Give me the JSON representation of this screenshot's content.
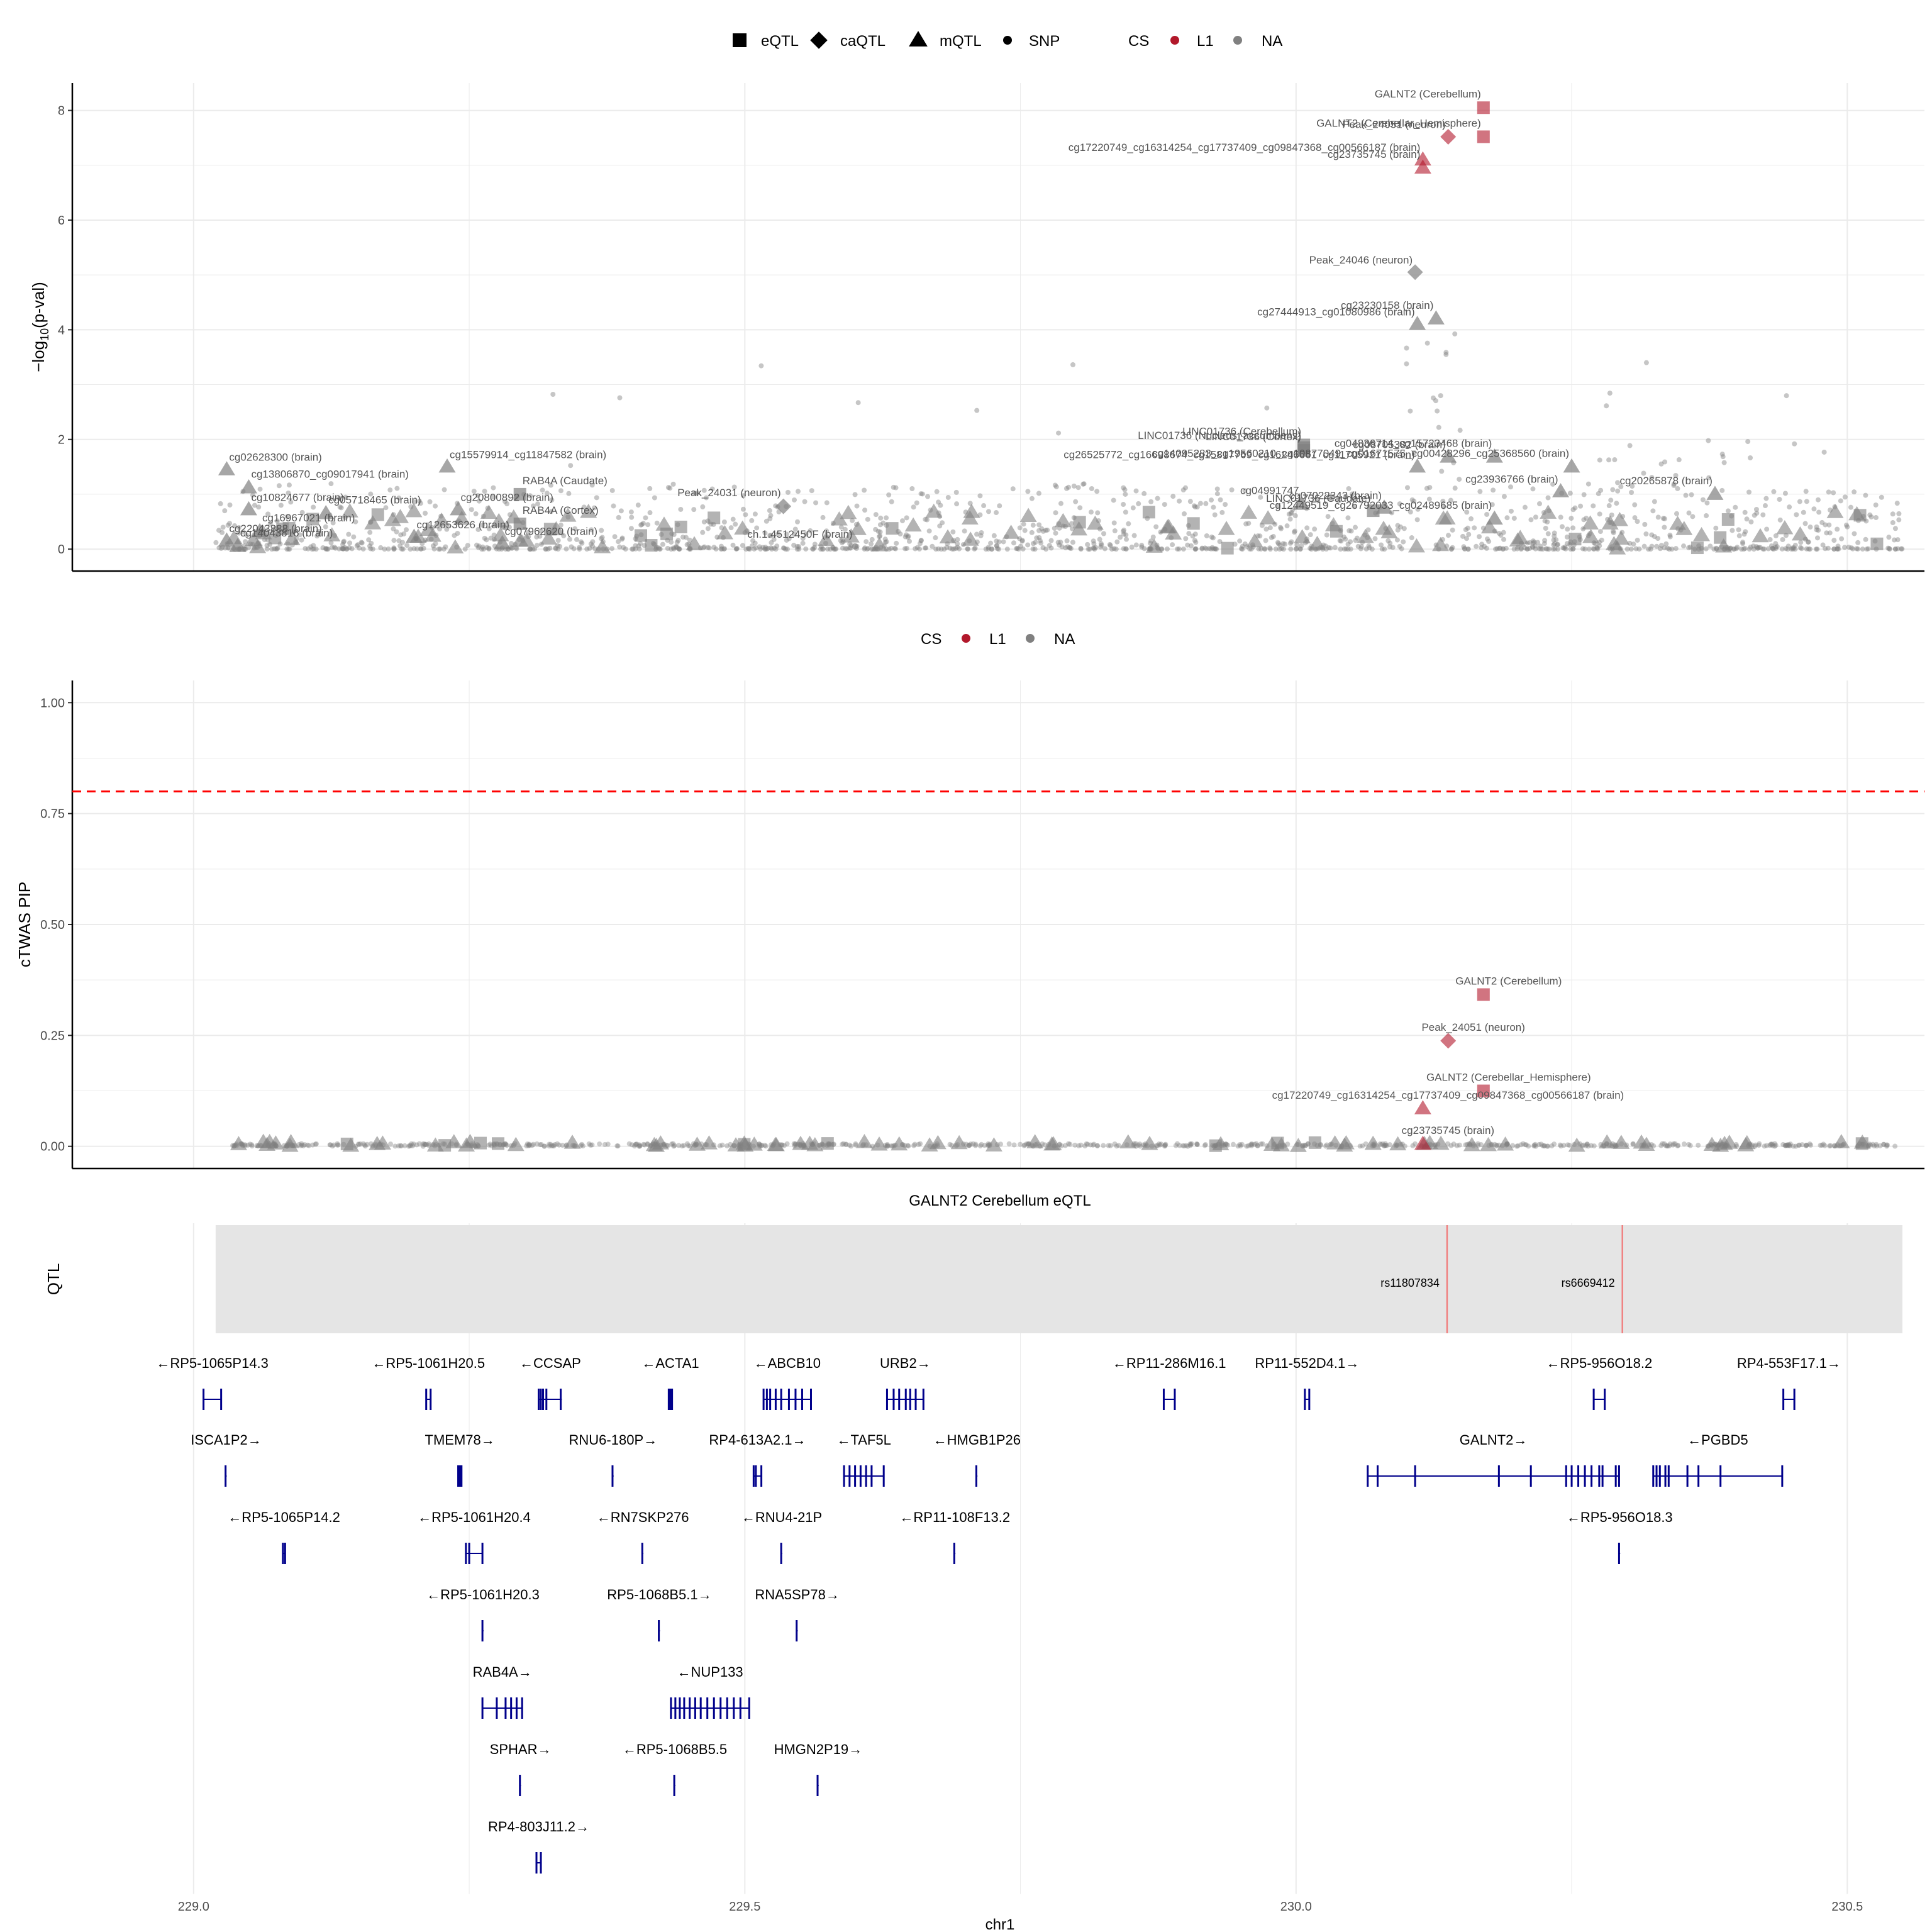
{
  "colors": {
    "cs_l1": "#B2182B",
    "cs_na": "#808080",
    "gene": "#00008B",
    "threshold": "#FF0000",
    "qtl_band": "#E5E5E5",
    "qtl_line": "#F08080",
    "grid": "#EBEBEB"
  },
  "legend_top": {
    "shape_items": [
      {
        "shape": "square",
        "label": "eQTL"
      },
      {
        "shape": "diamond",
        "label": "caQTL"
      },
      {
        "shape": "triangle",
        "label": "mQTL"
      },
      {
        "shape": "dot",
        "label": "SNP"
      }
    ],
    "cs_title": "CS",
    "cs_items": [
      {
        "label": "L1",
        "color": "#B2182B"
      },
      {
        "label": "NA",
        "color": "#808080"
      }
    ]
  },
  "legend_mid": {
    "cs_title": "CS",
    "cs_items": [
      {
        "label": "L1",
        "color": "#B2182B"
      },
      {
        "label": "NA",
        "color": "#808080"
      }
    ]
  },
  "chart_data": [
    {
      "type": "scatter",
      "title": "",
      "xlabel": "",
      "ylabel": "−log10(p-val)",
      "xlim": [
        228.89,
        230.57
      ],
      "ylim": [
        -0.4,
        8.5
      ],
      "yticks": [
        0,
        2,
        4,
        6,
        8
      ],
      "labeled_points": [
        {
          "x": 230.17,
          "y": 8.05,
          "shape": "square",
          "cs": "L1",
          "label": "GALNT2 (Cerebellum)"
        },
        {
          "x": 230.138,
          "y": 7.52,
          "shape": "diamond",
          "cs": "L1",
          "label": "Peak_24051 (neuron)"
        },
        {
          "x": 230.17,
          "y": 7.52,
          "shape": "square",
          "cs": "L1",
          "label": "GALNT2 (Cerebellar_Hemisphere)"
        },
        {
          "x": 230.115,
          "y": 7.1,
          "shape": "triangle",
          "cs": "L1",
          "label": "cg17220749_cg16314254_cg17737409_cg09847368_cg00566187 (brain)"
        },
        {
          "x": 230.115,
          "y": 6.95,
          "shape": "triangle",
          "cs": "L1",
          "label": "cg23735745 (brain)"
        },
        {
          "x": 230.108,
          "y": 5.05,
          "shape": "diamond",
          "cs": "NA",
          "label": "Peak_24046 (neuron)"
        },
        {
          "x": 230.127,
          "y": 4.2,
          "shape": "triangle",
          "cs": "NA",
          "label": "cg23230158 (brain)"
        },
        {
          "x": 230.11,
          "y": 4.1,
          "shape": "triangle",
          "cs": "NA",
          "label": "cg27444913_cg01080986 (brain)"
        },
        {
          "x": 230.007,
          "y": 1.9,
          "shape": "square",
          "cs": "NA",
          "label": "LINC01736 (Cerebellum)"
        },
        {
          "x": 230.007,
          "y": 1.85,
          "shape": "square",
          "cs": "NA",
          "label": "LINC01736 (Nucleus_accumbens)"
        },
        {
          "x": 230.007,
          "y": 1.8,
          "shape": "square",
          "cs": "NA",
          "label": "LINC01736 (Cortex)"
        },
        {
          "x": 230.138,
          "y": 1.68,
          "shape": "triangle",
          "cs": "NA",
          "label": "cg08705382 (brain)"
        },
        {
          "x": 230.18,
          "y": 1.68,
          "shape": "triangle",
          "cs": "NA",
          "label": "cg04836714_cg15723468 (brain)"
        },
        {
          "x": 230.11,
          "y": 1.5,
          "shape": "triangle",
          "cs": "NA",
          "label": "cg26525772_cg16698674_cg15817769_cg16246661_cg11705921 (brain)"
        },
        {
          "x": 230.25,
          "y": 1.5,
          "shape": "triangle",
          "cs": "NA",
          "label": "cg14095283_cg19560210_cg10877049_cg01671575_cg00428296_cg25368560 (brain)"
        },
        {
          "x": 230.08,
          "y": 0.75,
          "shape": "triangle",
          "cs": "NA",
          "label": "cg07022343 (brain)"
        },
        {
          "x": 230.005,
          "y": 0.82,
          "shape": "triangle",
          "cs": "NA",
          "label": "cg04991747"
        },
        {
          "x": 230.24,
          "y": 1.05,
          "shape": "triangle",
          "cs": "NA",
          "label": "cg23936766 (brain)"
        },
        {
          "x": 230.38,
          "y": 1.0,
          "shape": "triangle",
          "cs": "NA",
          "label": "cg20265878 (brain)"
        },
        {
          "x": 230.07,
          "y": 0.7,
          "shape": "square",
          "cs": "NA",
          "label": "LINC01736 (Caudate)"
        },
        {
          "x": 230.18,
          "y": 0.55,
          "shape": "triangle",
          "cs": "NA",
          "label": "cg12449519_cg26792033_cg02489685 (brain)"
        },
        {
          "x": 229.03,
          "y": 1.45,
          "shape": "triangle",
          "cs": "NA",
          "label": "cg02628300 (brain)"
        },
        {
          "x": 229.05,
          "y": 1.12,
          "shape": "triangle",
          "cs": "NA",
          "label": "cg13806870_cg09017941 (brain)"
        },
        {
          "x": 229.05,
          "y": 0.72,
          "shape": "triangle",
          "cs": "NA",
          "label": "cg10824677 (brain)"
        },
        {
          "x": 229.12,
          "y": 0.65,
          "shape": "triangle",
          "cs": "NA",
          "label": "cg05718465 (brain)"
        },
        {
          "x": 229.23,
          "y": 1.5,
          "shape": "triangle",
          "cs": "NA",
          "label": "cg15579914_cg11847582 (brain)"
        },
        {
          "x": 229.296,
          "y": 1.0,
          "shape": "square",
          "cs": "NA",
          "label": "RAB4A (Caudate)"
        },
        {
          "x": 229.24,
          "y": 0.72,
          "shape": "triangle",
          "cs": "NA",
          "label": "cg20800892 (brain)"
        },
        {
          "x": 229.06,
          "y": 0.32,
          "shape": "triangle",
          "cs": "NA",
          "label": "cg16967021 (brain)"
        },
        {
          "x": 229.2,
          "y": 0.22,
          "shape": "triangle",
          "cs": "NA",
          "label": "cg12653626 (brain)"
        },
        {
          "x": 229.296,
          "y": 0.46,
          "shape": "square",
          "cs": "NA",
          "label": "RAB4A (Cortex)"
        },
        {
          "x": 229.03,
          "y": 0.15,
          "shape": "triangle",
          "cs": "NA",
          "label": "cg22043888 (brain)"
        },
        {
          "x": 229.04,
          "y": 0.05,
          "shape": "triangle",
          "cs": "NA",
          "label": "cg14043816 (brain)"
        },
        {
          "x": 229.28,
          "y": 0.1,
          "shape": "triangle",
          "cs": "NA",
          "label": "cg07962620 (brain)"
        },
        {
          "x": 229.535,
          "y": 0.78,
          "shape": "diamond",
          "cs": "NA",
          "label": "Peak_24031 (neuron)"
        },
        {
          "x": 229.6,
          "y": 0.05,
          "shape": "dot",
          "cs": "NA",
          "label": "ch.1.4512450F (brain)"
        }
      ]
    },
    {
      "type": "scatter",
      "title": "",
      "xlabel": "",
      "ylabel": "cTWAS PIP",
      "xlim": [
        228.89,
        230.57
      ],
      "ylim": [
        -0.05,
        1.05
      ],
      "yticks": [
        0.0,
        0.25,
        0.5,
        0.75,
        1.0
      ],
      "ytick_labels": [
        "0.00",
        "0.25",
        "0.50",
        "0.75",
        "1.00"
      ],
      "threshold": 0.8,
      "labeled_points": [
        {
          "x": 230.17,
          "y": 0.342,
          "shape": "square",
          "cs": "L1",
          "label": "GALNT2 (Cerebellum)"
        },
        {
          "x": 230.138,
          "y": 0.238,
          "shape": "diamond",
          "cs": "L1",
          "label": "Peak_24051 (neuron)"
        },
        {
          "x": 230.17,
          "y": 0.125,
          "shape": "square",
          "cs": "L1",
          "label": "GALNT2 (Cerebellar_Hemisphere)"
        },
        {
          "x": 230.115,
          "y": 0.085,
          "shape": "triangle",
          "cs": "L1",
          "label": "cg17220749_cg16314254_cg17737409_cg09847368_cg00566187 (brain)"
        },
        {
          "x": 230.115,
          "y": 0.005,
          "shape": "triangle",
          "cs": "L1",
          "label": "cg23735745 (brain)"
        }
      ]
    },
    {
      "type": "gene_track",
      "title": "GALNT2 Cerebellum eQTL",
      "ylabel": "QTL",
      "xlabel": "chr1",
      "xlim": [
        228.89,
        230.57
      ],
      "xticks": [
        229.0,
        229.5,
        230.0,
        230.5
      ],
      "xtick_labels": [
        "229.0",
        "229.5",
        "230.0",
        "230.5"
      ],
      "qtl_range": [
        229.02,
        230.55
      ],
      "qtl_snps": [
        {
          "pos": 230.137,
          "label": "rs11807834"
        },
        {
          "pos": 230.296,
          "label": "rs6669412"
        }
      ],
      "genes": [
        {
          "label": "←RP5-1065P14.3",
          "row": 0,
          "start": 229.009,
          "end": 229.025,
          "exons": [
            229.009,
            229.025
          ]
        },
        {
          "label": "←RP5-1061H20.5",
          "row": 0,
          "start": 229.211,
          "end": 229.215,
          "exons": [
            229.211,
            229.215
          ]
        },
        {
          "label": "←CCSAP",
          "row": 0,
          "start": 229.313,
          "end": 229.334,
          "exons": [
            229.313,
            229.315,
            229.317,
            229.32,
            229.333
          ]
        },
        {
          "label": "←ACTA1",
          "row": 0,
          "start": 229.431,
          "end": 229.434,
          "exons": [
            229.431,
            229.432,
            229.433,
            229.434
          ]
        },
        {
          "label": "←ABCB10",
          "row": 0,
          "start": 229.517,
          "end": 229.56,
          "exons": [
            229.517,
            229.52,
            229.523,
            229.528,
            229.533,
            229.54,
            229.546,
            229.552,
            229.56
          ]
        },
        {
          "label": "URB2→",
          "row": 0,
          "start": 229.629,
          "end": 229.662,
          "exons": [
            229.629,
            229.635,
            229.64,
            229.646,
            229.65,
            229.655,
            229.662
          ]
        },
        {
          "label": "←RP11-286M16.1",
          "row": 0,
          "start": 229.88,
          "end": 229.89,
          "exons": [
            229.88,
            229.89
          ]
        },
        {
          "label": "RP11-552D4.1→",
          "row": 0,
          "start": 230.008,
          "end": 230.012,
          "exons": [
            230.008,
            230.012
          ]
        },
        {
          "label": "←RP5-956O18.2",
          "row": 0,
          "start": 230.27,
          "end": 230.28,
          "exons": [
            230.27,
            230.28
          ]
        },
        {
          "label": "RP4-553F17.1→",
          "row": 0,
          "start": 230.442,
          "end": 230.452,
          "exons": [
            230.442,
            230.452
          ]
        },
        {
          "label": "ISCA1P2→",
          "row": 1,
          "start": 229.029,
          "end": 229.03,
          "exons": [
            229.029
          ]
        },
        {
          "label": "TMEM78→",
          "row": 1,
          "start": 229.24,
          "end": 229.243,
          "exons": [
            229.24,
            229.241,
            229.242,
            229.243
          ]
        },
        {
          "label": "RNU6-180P→",
          "row": 1,
          "start": 229.38,
          "end": 229.381,
          "exons": [
            229.38
          ]
        },
        {
          "label": "RP4-613A2.1→",
          "row": 1,
          "start": 229.508,
          "end": 229.515,
          "exons": [
            229.508,
            229.51,
            229.515
          ]
        },
        {
          "label": "←TAF5L",
          "row": 1,
          "start": 229.59,
          "end": 229.626,
          "exons": [
            229.59,
            229.595,
            229.6,
            229.605,
            229.61,
            229.615,
            229.626
          ]
        },
        {
          "label": "←HMGB1P26",
          "row": 1,
          "start": 229.71,
          "end": 229.711,
          "exons": [
            229.71
          ]
        },
        {
          "label": "GALNT2→",
          "row": 1,
          "start": 230.065,
          "end": 230.293,
          "exons": [
            230.065,
            230.074,
            230.108,
            230.184,
            230.213,
            230.245,
            230.25,
            230.256,
            230.262,
            230.268,
            230.275,
            230.278,
            230.29,
            230.293
          ]
        },
        {
          "label": "←PGBD5",
          "row": 1,
          "start": 230.324,
          "end": 230.441,
          "exons": [
            230.324,
            230.327,
            230.33,
            230.335,
            230.338,
            230.355,
            230.365,
            230.385,
            230.441
          ]
        },
        {
          "label": "←RP5-1065P14.2",
          "row": 2,
          "start": 229.081,
          "end": 229.083,
          "exons": [
            229.081,
            229.083
          ]
        },
        {
          "label": "←RP5-1061H20.4",
          "row": 2,
          "start": 229.247,
          "end": 229.262,
          "exons": [
            229.247,
            229.25,
            229.262
          ]
        },
        {
          "label": "←RN7SKP276",
          "row": 2,
          "start": 229.407,
          "end": 229.408,
          "exons": [
            229.407
          ]
        },
        {
          "label": "←RNU4-21P",
          "row": 2,
          "start": 229.533,
          "end": 229.534,
          "exons": [
            229.533
          ]
        },
        {
          "label": "←RP11-108F13.2",
          "row": 2,
          "start": 229.69,
          "end": 229.691,
          "exons": [
            229.69
          ]
        },
        {
          "label": "←RP5-956O18.3",
          "row": 2,
          "start": 230.293,
          "end": 230.294,
          "exons": [
            230.293
          ]
        },
        {
          "label": "←RP5-1061H20.3",
          "row": 3,
          "start": 229.262,
          "end": 229.263,
          "exons": [
            229.262
          ]
        },
        {
          "label": "RP5-1068B5.1→",
          "row": 3,
          "start": 229.422,
          "end": 229.423,
          "exons": [
            229.422
          ]
        },
        {
          "label": "RNA5SP78→",
          "row": 3,
          "start": 229.547,
          "end": 229.548,
          "exons": [
            229.547
          ]
        },
        {
          "label": "RAB4A→",
          "row": 4,
          "start": 229.262,
          "end": 229.298,
          "exons": [
            229.262,
            229.275,
            229.283,
            229.288,
            229.293,
            229.298
          ]
        },
        {
          "label": "←NUP133",
          "row": 4,
          "start": 229.433,
          "end": 229.504,
          "exons": [
            229.433,
            229.437,
            229.441,
            229.445,
            229.45,
            229.455,
            229.46,
            229.466,
            229.472,
            229.478,
            229.484,
            229.49,
            229.496,
            229.504
          ]
        },
        {
          "label": "SPHAR→",
          "row": 5,
          "start": 229.296,
          "end": 229.297,
          "exons": [
            229.296
          ]
        },
        {
          "label": "←RP5-1068B5.5",
          "row": 5,
          "start": 229.436,
          "end": 229.437,
          "exons": [
            229.436
          ]
        },
        {
          "label": "HMGN2P19→",
          "row": 5,
          "start": 229.566,
          "end": 229.567,
          "exons": [
            229.566
          ]
        },
        {
          "label": "RP4-803J11.2→",
          "row": 6,
          "start": 229.311,
          "end": 229.315,
          "exons": [
            229.311,
            229.315
          ]
        }
      ]
    }
  ]
}
